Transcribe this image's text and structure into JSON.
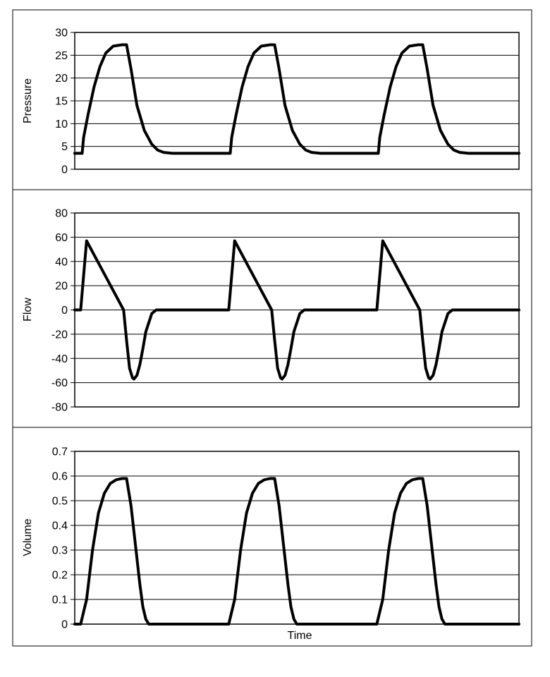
{
  "chart_data": [
    {
      "type": "line",
      "xlabel": "",
      "ylabel": "Pressure",
      "ylim": [
        0,
        30
      ],
      "yticks": [
        0,
        5,
        10,
        15,
        20,
        25,
        30
      ],
      "xlim": [
        0,
        3
      ],
      "grid": true,
      "series": [
        {
          "x": [
            0,
            0.05,
            0.06,
            0.09,
            0.13,
            0.17,
            0.21,
            0.26,
            0.32,
            0.35,
            0.38,
            0.42,
            0.47,
            0.52,
            0.56,
            0.6,
            0.66,
            0.75,
            1.0,
            1.05,
            1.06,
            1.09,
            1.13,
            1.17,
            1.21,
            1.26,
            1.32,
            1.35,
            1.38,
            1.42,
            1.47,
            1.52,
            1.56,
            1.6,
            1.66,
            1.75,
            2.0,
            2.05,
            2.06,
            2.09,
            2.13,
            2.17,
            2.21,
            2.26,
            2.32,
            2.35,
            2.38,
            2.42,
            2.47,
            2.52,
            2.56,
            2.6,
            2.66,
            2.75,
            3.0
          ],
          "y": [
            3.5,
            3.5,
            7,
            12,
            18,
            22.5,
            25.5,
            27,
            27.3,
            27.3,
            22,
            14,
            8.5,
            5.5,
            4.2,
            3.7,
            3.5,
            3.5,
            3.5,
            3.5,
            7,
            12,
            18,
            22.5,
            25.5,
            27,
            27.3,
            27.3,
            22,
            14,
            8.5,
            5.5,
            4.2,
            3.7,
            3.5,
            3.5,
            3.5,
            3.5,
            7,
            12,
            18,
            22.5,
            25.5,
            27,
            27.3,
            27.3,
            22,
            14,
            8.5,
            5.5,
            4.2,
            3.7,
            3.5,
            3.5,
            3.5
          ]
        }
      ]
    },
    {
      "type": "line",
      "xlabel": "",
      "ylabel": "Flow",
      "ylim": [
        -80,
        80
      ],
      "yticks": [
        -80,
        -60,
        -40,
        -20,
        0,
        20,
        40,
        60,
        80
      ],
      "xlim": [
        0,
        3
      ],
      "grid": true,
      "series": [
        {
          "x": [
            0,
            0.04,
            0.08,
            0.33,
            0.35,
            0.37,
            0.39,
            0.4,
            0.42,
            0.44,
            0.46,
            0.48,
            0.52,
            0.55,
            0.6,
            1.0,
            1.04,
            1.08,
            1.33,
            1.35,
            1.37,
            1.39,
            1.4,
            1.42,
            1.44,
            1.46,
            1.48,
            1.52,
            1.55,
            1.6,
            2.0,
            2.04,
            2.08,
            2.33,
            2.35,
            2.37,
            2.39,
            2.4,
            2.42,
            2.44,
            2.46,
            2.48,
            2.52,
            2.55,
            2.6,
            3.0
          ],
          "y": [
            0,
            0,
            57,
            0,
            -25,
            -48,
            -56,
            -57,
            -54,
            -45,
            -32,
            -18,
            -3,
            0,
            0,
            0,
            0,
            57,
            0,
            -25,
            -48,
            -56,
            -57,
            -54,
            -45,
            -32,
            -18,
            -3,
            0,
            0,
            0,
            0,
            57,
            0,
            -25,
            -48,
            -56,
            -57,
            -54,
            -45,
            -32,
            -18,
            -3,
            0,
            0,
            0
          ]
        }
      ]
    },
    {
      "type": "line",
      "xlabel": "Time",
      "ylabel": "Volume",
      "ylim": [
        0,
        0.7
      ],
      "yticks": [
        0,
        0.1,
        0.2,
        0.3,
        0.4,
        0.5,
        0.6,
        0.7
      ],
      "xlim": [
        0,
        3
      ],
      "grid": true,
      "series": [
        {
          "x": [
            0,
            0.04,
            0.08,
            0.12,
            0.16,
            0.2,
            0.24,
            0.28,
            0.32,
            0.35,
            0.38,
            0.41,
            0.44,
            0.46,
            0.48,
            0.5,
            0.55,
            1.0,
            1.04,
            1.08,
            1.12,
            1.16,
            1.2,
            1.24,
            1.28,
            1.32,
            1.35,
            1.38,
            1.41,
            1.44,
            1.46,
            1.48,
            1.5,
            1.55,
            2.0,
            2.04,
            2.08,
            2.12,
            2.16,
            2.2,
            2.24,
            2.28,
            2.32,
            2.35,
            2.38,
            2.41,
            2.44,
            2.46,
            2.48,
            2.5,
            2.55,
            3.0
          ],
          "y": [
            0,
            0,
            0.1,
            0.3,
            0.45,
            0.53,
            0.57,
            0.585,
            0.59,
            0.59,
            0.48,
            0.32,
            0.16,
            0.07,
            0.02,
            0,
            0,
            0,
            0,
            0.1,
            0.3,
            0.45,
            0.53,
            0.57,
            0.585,
            0.59,
            0.59,
            0.48,
            0.32,
            0.16,
            0.07,
            0.02,
            0,
            0,
            0,
            0,
            0.1,
            0.3,
            0.45,
            0.53,
            0.57,
            0.585,
            0.59,
            0.59,
            0.48,
            0.32,
            0.16,
            0.07,
            0.02,
            0,
            0,
            0
          ]
        }
      ]
    }
  ]
}
